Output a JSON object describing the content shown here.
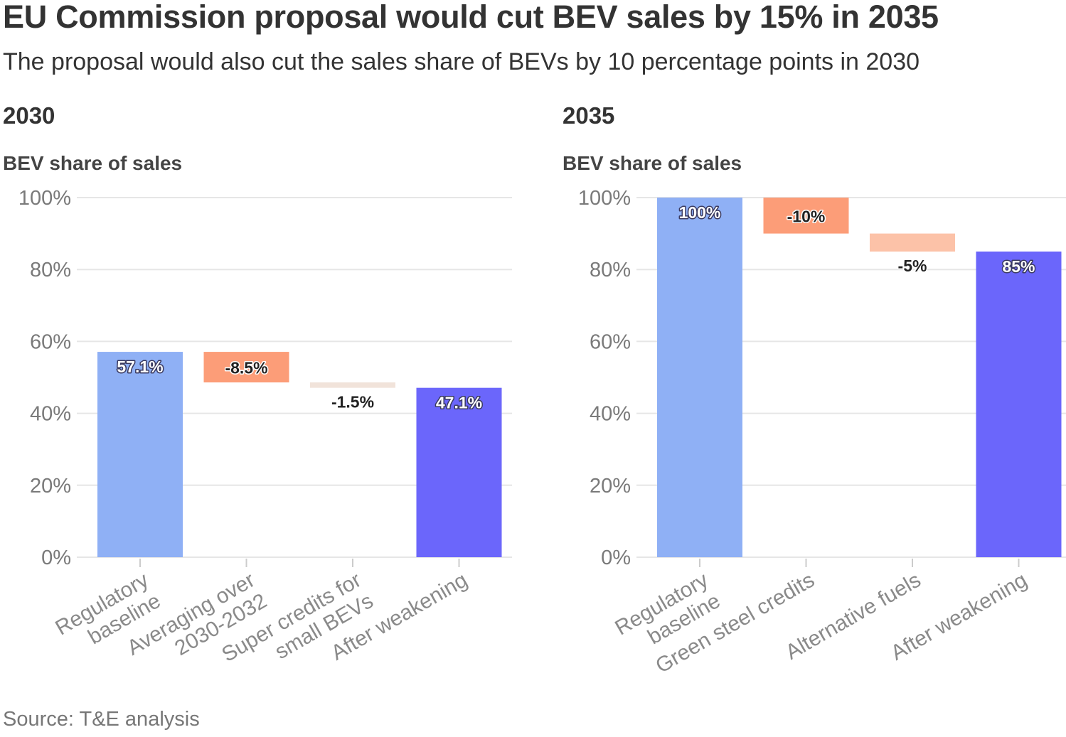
{
  "header": {
    "title": "EU Commission proposal would cut BEV sales by 15% in 2035",
    "subtitle": "The proposal would also cut the sales share of BEVs by 10 percentage points in 2030"
  },
  "footer": {
    "source": "Source: T&E analysis"
  },
  "colors": {
    "baseline": "#8fb0f5",
    "result": "#6b66fb",
    "decrease_strong": "#fc9d78",
    "decrease_light": "#fcc2a8",
    "decrease_faint": "#f1e3da"
  },
  "chart_data": [
    {
      "type": "bar",
      "subtype": "waterfall",
      "title": "2030",
      "ylabel": "BEV share of sales",
      "ylim": [
        0,
        100
      ],
      "yticks": [
        "0%",
        "20%",
        "40%",
        "60%",
        "80%",
        "100%"
      ],
      "categories": [
        [
          "Regulatory",
          "baseline"
        ],
        [
          "Averaging over",
          "2030-2032"
        ],
        [
          "Super credits for",
          "small BEVs"
        ],
        [
          "After weakening"
        ]
      ],
      "bars": [
        {
          "kind": "total",
          "start": 0,
          "end": 57.1,
          "label": "57.1%",
          "color": "#8fb0f5"
        },
        {
          "kind": "delta",
          "start": 57.1,
          "end": 48.6,
          "label": "-8.5%",
          "color": "#fc9d78"
        },
        {
          "kind": "delta",
          "start": 48.6,
          "end": 47.1,
          "label": "-1.5%",
          "color": "#f1e3da"
        },
        {
          "kind": "total",
          "start": 0,
          "end": 47.1,
          "label": "47.1%",
          "color": "#6b66fb"
        }
      ]
    },
    {
      "type": "bar",
      "subtype": "waterfall",
      "title": "2035",
      "ylabel": "BEV share of sales",
      "ylim": [
        0,
        100
      ],
      "yticks": [
        "0%",
        "20%",
        "40%",
        "60%",
        "80%",
        "100%"
      ],
      "categories": [
        [
          "Regulatory",
          "baseline"
        ],
        [
          "Green steel credits"
        ],
        [
          "Alternative fuels"
        ],
        [
          "After weakening"
        ]
      ],
      "bars": [
        {
          "kind": "total",
          "start": 0,
          "end": 100,
          "label": "100%",
          "color": "#8fb0f5"
        },
        {
          "kind": "delta",
          "start": 100,
          "end": 90,
          "label": "-10%",
          "color": "#fc9d78"
        },
        {
          "kind": "delta",
          "start": 90,
          "end": 85,
          "label": "-5%",
          "color": "#fcc2a8"
        },
        {
          "kind": "total",
          "start": 0,
          "end": 85,
          "label": "85%",
          "color": "#6b66fb"
        }
      ]
    }
  ]
}
